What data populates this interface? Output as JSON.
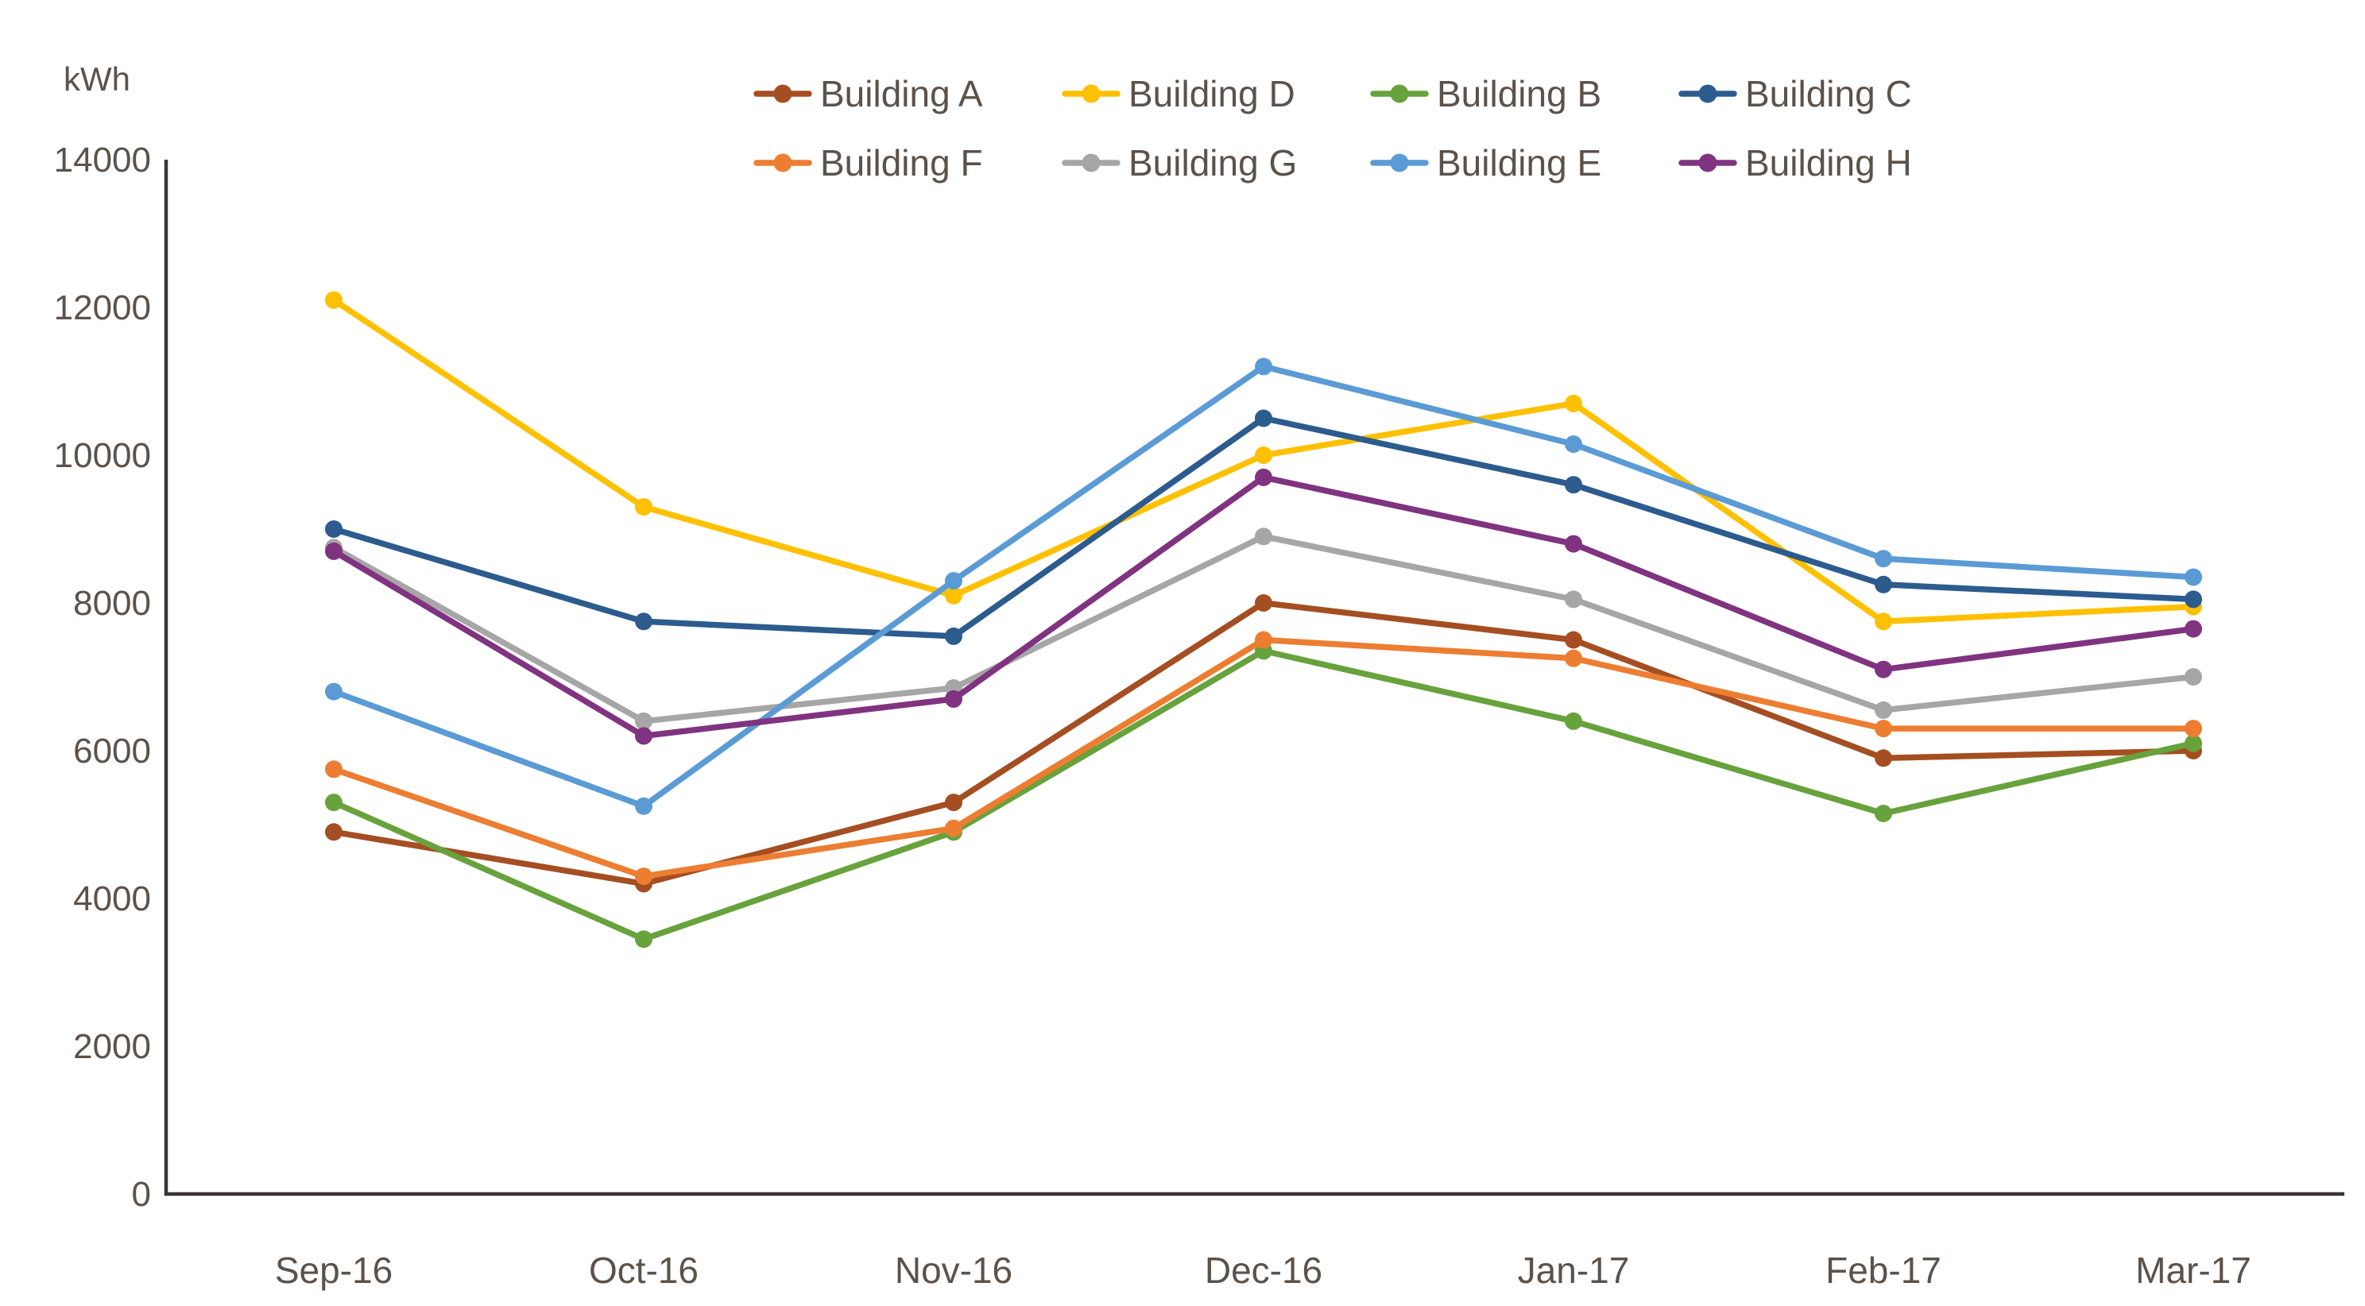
{
  "page": {
    "background": "#FFFFFF"
  },
  "chart_data": {
    "type": "line",
    "title": "",
    "xlabel": "",
    "ylabel": "kWh",
    "x_categories": [
      "Sep-16",
      "Oct-16",
      "Nov-16",
      "Dec-16",
      "Jan-17",
      "Feb-17",
      "Mar-17"
    ],
    "series": [
      {
        "name": "Building A",
        "color": "#A44E22",
        "values": [
          4900,
          4200,
          5300,
          8000,
          7500,
          5900,
          6000
        ]
      },
      {
        "name": "Building D",
        "color": "#FFC000",
        "values": [
          12100,
          9300,
          8100,
          10000,
          10700,
          7750,
          7950
        ]
      },
      {
        "name": "Building B",
        "color": "#67A23C",
        "values": [
          5300,
          3450,
          4900,
          7350,
          6400,
          5150,
          6100
        ]
      },
      {
        "name": "Building C",
        "color": "#2C5B8E",
        "values": [
          9000,
          7750,
          7550,
          10500,
          9600,
          8250,
          8050
        ]
      },
      {
        "name": "Building F",
        "color": "#ED7D31",
        "values": [
          5750,
          4300,
          4950,
          7500,
          7250,
          6300,
          6300
        ]
      },
      {
        "name": "Building G",
        "color": "#A6A6A6",
        "values": [
          8750,
          6400,
          6850,
          8900,
          8050,
          6550,
          7000
        ]
      },
      {
        "name": "Building E",
        "color": "#5B9BD5",
        "values": [
          6800,
          5250,
          8300,
          11200,
          10150,
          8600,
          8350
        ]
      },
      {
        "name": "Building H",
        "color": "#803380",
        "values": [
          8700,
          6200,
          6700,
          9700,
          8800,
          7100,
          7650
        ]
      }
    ],
    "ylim": [
      0,
      14000
    ],
    "yticks": [
      0,
      2000,
      4000,
      6000,
      8000,
      10000,
      12000,
      14000
    ],
    "grid": false,
    "legend_position": "top-center, two rows",
    "legend_rows": [
      [
        "Building A",
        "Building D",
        "Building B",
        "Building C"
      ],
      [
        "Building F",
        "Building G",
        "Building E",
        "Building H"
      ]
    ],
    "marker": "circle",
    "text_color": "#5B524B",
    "axis_color": "#3A3430"
  }
}
